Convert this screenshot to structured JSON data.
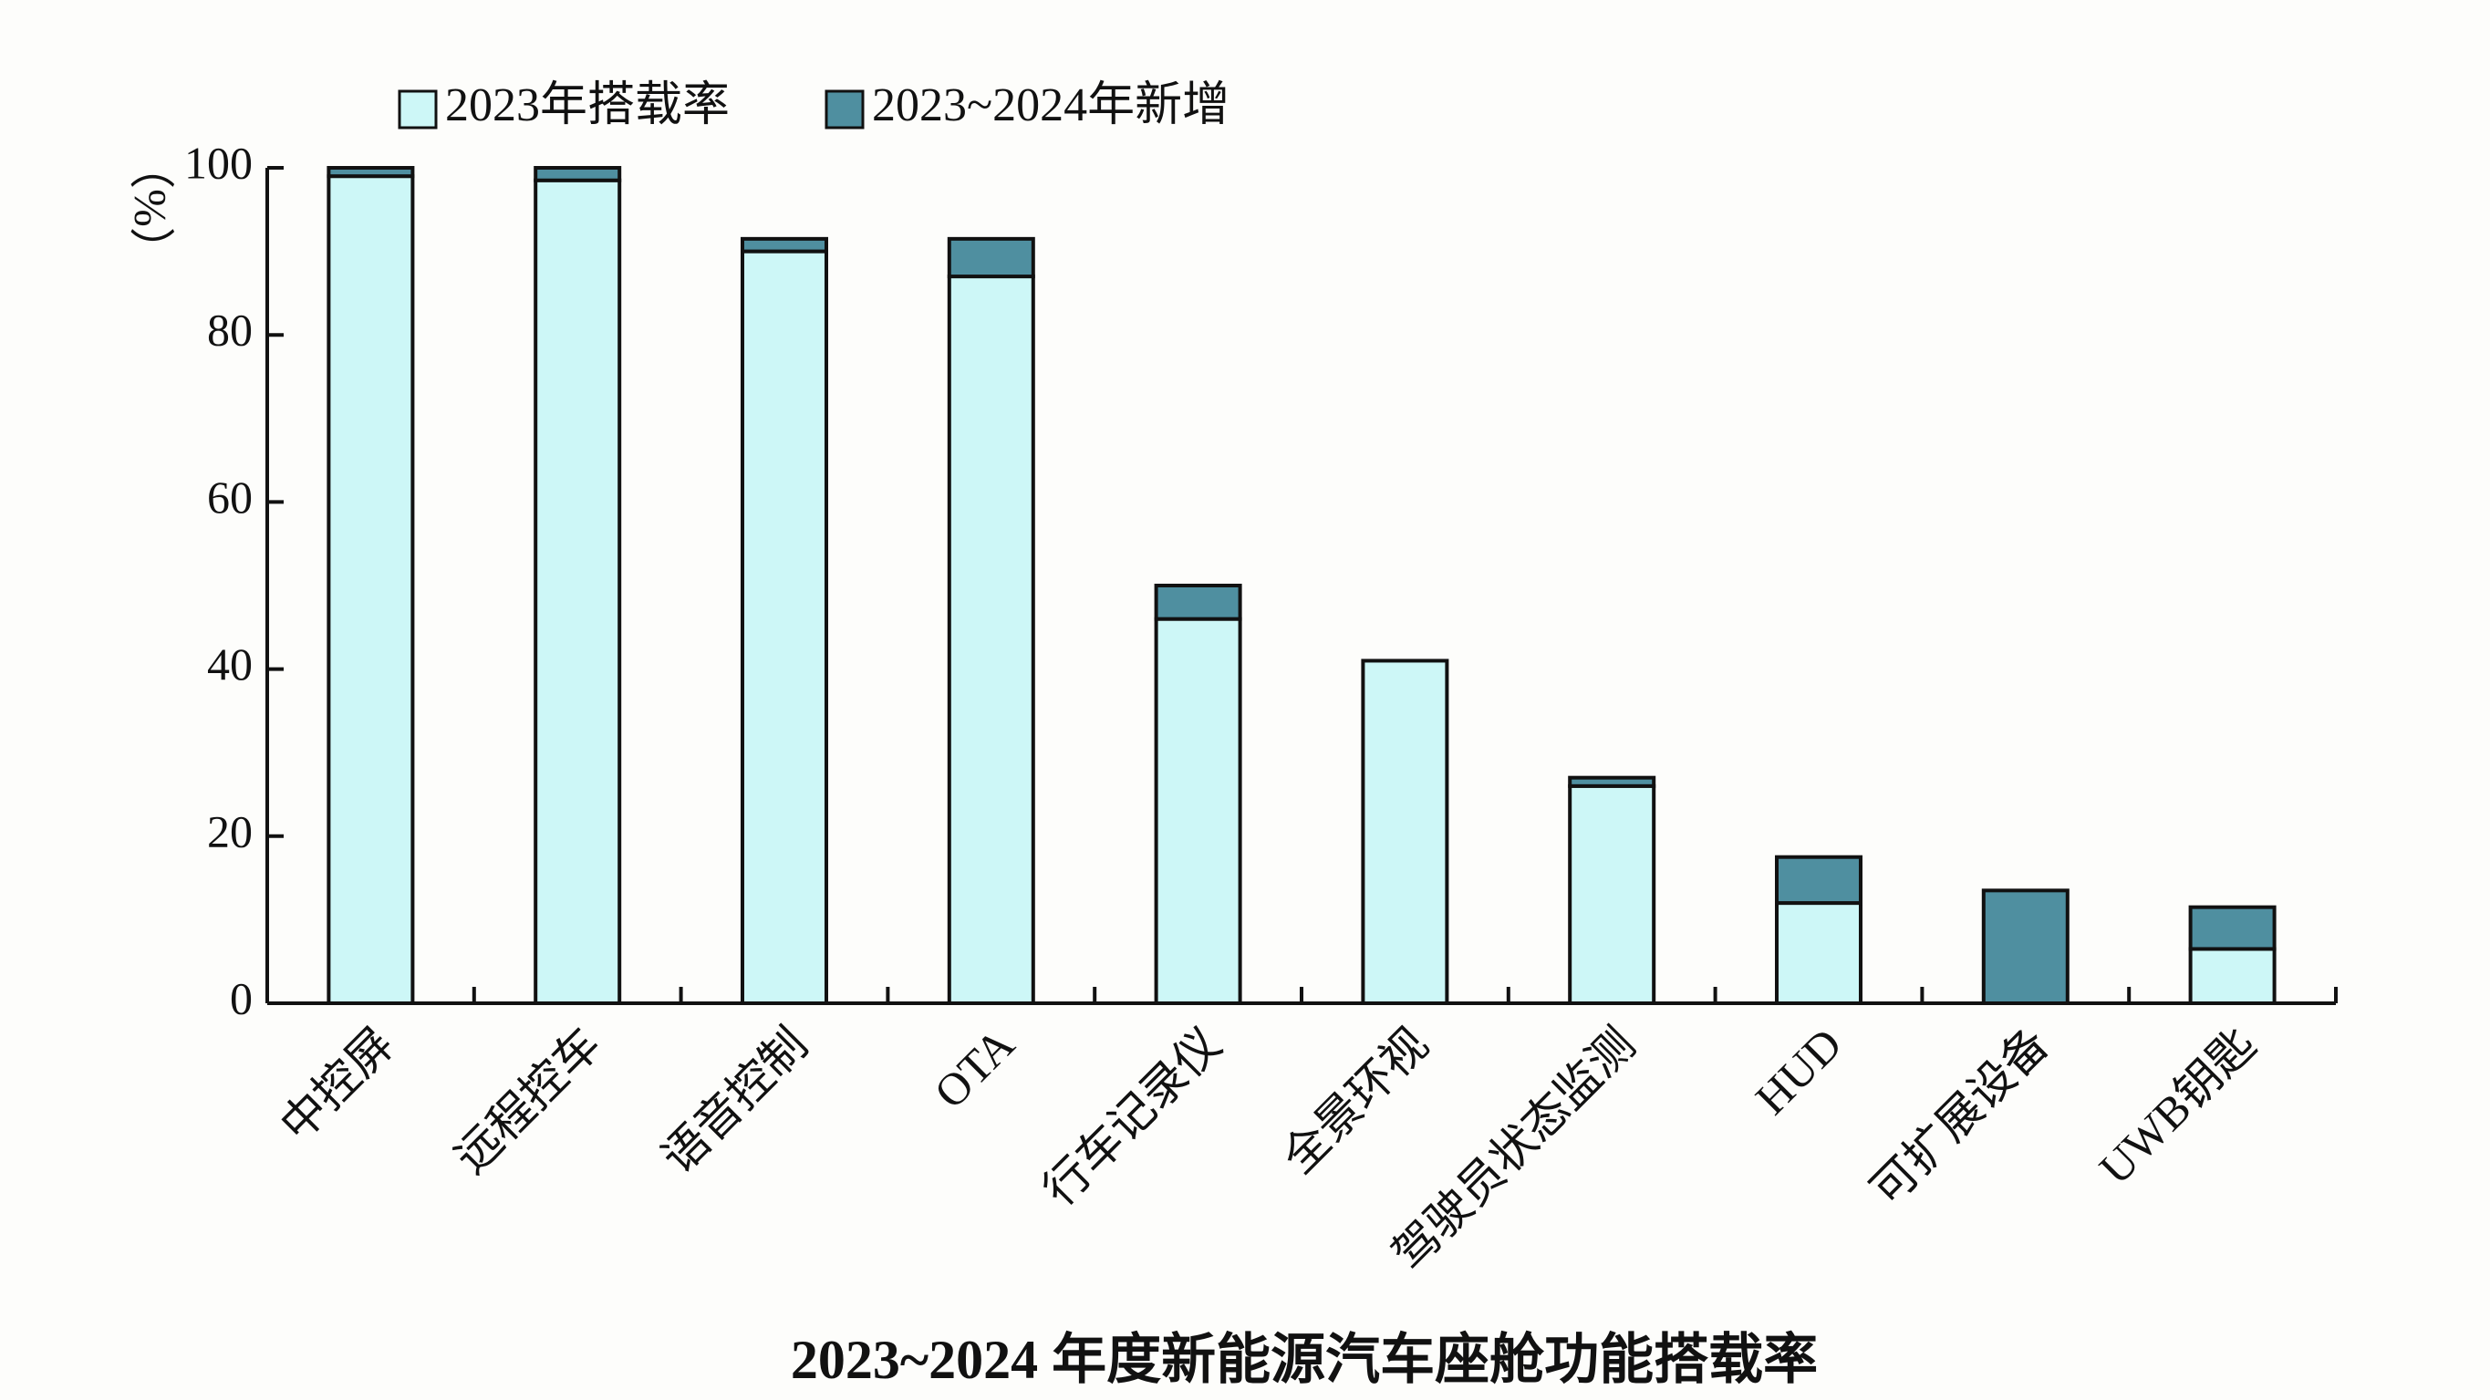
{
  "chart_data": {
    "type": "bar",
    "stacked": true,
    "title": "2023~2024 年度新能源汽车座舱功能搭载率",
    "y_label": "（%）",
    "categories": [
      "中控屏",
      "远程控车",
      "语音控制",
      "OTA",
      "行车记录仪",
      "全景环视",
      "驾驶员状态监测",
      "HUD",
      "可扩展设备",
      "UWB钥匙"
    ],
    "series": [
      {
        "name": "2023年搭载率",
        "color": "#cdf7f7",
        "values": [
          99,
          98.5,
          90,
          87,
          46,
          41,
          26,
          12,
          0,
          6.5
        ]
      },
      {
        "name": "2023~2024年新增",
        "color": "#4f8fa0",
        "values": [
          1,
          1.5,
          1.5,
          4.5,
          4,
          0,
          1,
          5.5,
          13.5,
          5
        ]
      }
    ],
    "ylim": [
      0,
      100
    ],
    "yticks": [
      0,
      20,
      40,
      60,
      80,
      100
    ],
    "grid": false,
    "legend": "top"
  }
}
